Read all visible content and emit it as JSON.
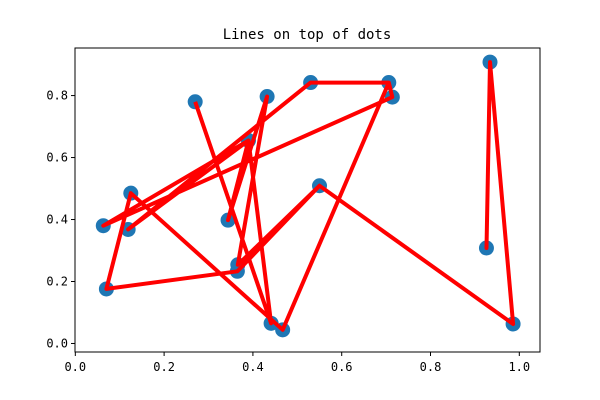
{
  "chart_data": {
    "type": "scatter",
    "title": "Lines on top of dots",
    "xlabel": "",
    "ylabel": "",
    "xlim": [
      -0.0007,
      1.0466
    ],
    "ylim": [
      -0.0275,
      0.9535
    ],
    "xticks": [
      0.0,
      0.2,
      0.4,
      0.6,
      0.8,
      1.0
    ],
    "xtick_labels": [
      "0.0",
      "0.2",
      "0.4",
      "0.6",
      "0.8",
      "1.0"
    ],
    "yticks": [
      0.0,
      0.2,
      0.4,
      0.6,
      0.8
    ],
    "ytick_labels": [
      "0.0",
      "0.2",
      "0.4",
      "0.6",
      "0.8"
    ],
    "grid": false,
    "legend": "none",
    "series": [
      {
        "type": "scatter",
        "color": "#1f77b4",
        "points": [
          {
            "x": 0.063,
            "y": 0.38
          },
          {
            "x": 0.125,
            "y": 0.485
          },
          {
            "x": 0.119,
            "y": 0.368
          },
          {
            "x": 0.07,
            "y": 0.176
          },
          {
            "x": 0.27,
            "y": 0.78
          },
          {
            "x": 0.344,
            "y": 0.398
          },
          {
            "x": 0.365,
            "y": 0.233
          },
          {
            "x": 0.366,
            "y": 0.254
          },
          {
            "x": 0.39,
            "y": 0.655
          },
          {
            "x": 0.432,
            "y": 0.797
          },
          {
            "x": 0.441,
            "y": 0.065
          },
          {
            "x": 0.467,
            "y": 0.044
          },
          {
            "x": 0.53,
            "y": 0.842
          },
          {
            "x": 0.55,
            "y": 0.509
          },
          {
            "x": 0.706,
            "y": 0.842
          },
          {
            "x": 0.714,
            "y": 0.795
          },
          {
            "x": 0.926,
            "y": 0.308
          },
          {
            "x": 0.934,
            "y": 0.908
          },
          {
            "x": 0.986,
            "y": 0.063
          }
        ]
      },
      {
        "type": "line",
        "color": "#ff0000",
        "points": [
          {
            "x": 0.27,
            "y": 0.78
          },
          {
            "x": 0.441,
            "y": 0.065
          },
          {
            "x": 0.39,
            "y": 0.655
          },
          {
            "x": 0.063,
            "y": 0.38
          },
          {
            "x": 0.714,
            "y": 0.795
          },
          {
            "x": 0.706,
            "y": 0.842
          },
          {
            "x": 0.53,
            "y": 0.842
          },
          {
            "x": 0.119,
            "y": 0.368
          },
          {
            "x": 0.39,
            "y": 0.655
          },
          {
            "x": 0.344,
            "y": 0.398
          },
          {
            "x": 0.432,
            "y": 0.797
          },
          {
            "x": 0.366,
            "y": 0.254
          },
          {
            "x": 0.55,
            "y": 0.509
          },
          {
            "x": 0.986,
            "y": 0.063
          },
          {
            "x": 0.934,
            "y": 0.908
          },
          {
            "x": 0.926,
            "y": 0.308
          },
          {
            "x": 0.934,
            "y": 0.908
          },
          {
            "x": 0.986,
            "y": 0.063
          },
          {
            "x": 0.55,
            "y": 0.509
          },
          {
            "x": 0.365,
            "y": 0.233
          },
          {
            "x": 0.07,
            "y": 0.176
          },
          {
            "x": 0.125,
            "y": 0.485
          },
          {
            "x": 0.467,
            "y": 0.044
          },
          {
            "x": 0.706,
            "y": 0.842
          }
        ]
      }
    ]
  }
}
